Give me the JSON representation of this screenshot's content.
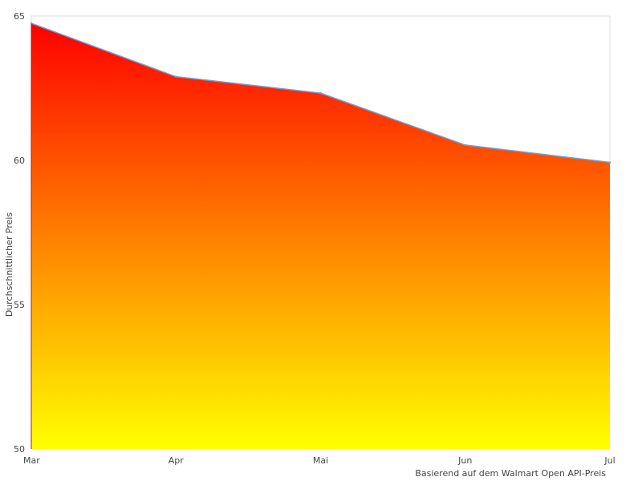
{
  "chart_data": {
    "type": "area",
    "categories": [
      "Mar",
      "Apr",
      "Mai",
      "Jun",
      "Jul"
    ],
    "values": [
      64.75,
      62.9,
      62.33,
      60.53,
      59.93
    ],
    "ylabel": "Durchschnittlicher Preis",
    "ylim": [
      50,
      65
    ],
    "yticks": [
      50,
      55,
      60,
      65
    ],
    "note": "Basierend auf dem Walmart Open API-Preis",
    "grid": false,
    "colors": {
      "fill_top": "#ff0000",
      "fill_bottom": "#ffff00",
      "line": "#6fa0d8",
      "frame": "#d7dce5"
    }
  }
}
